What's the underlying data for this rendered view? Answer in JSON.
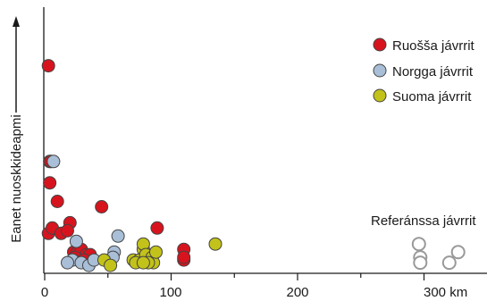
{
  "chart_data": {
    "type": "scatter",
    "title": "",
    "xlabel": "",
    "ylabel": "Eanet nuoskkideapmi",
    "xlim": [
      0,
      345
    ],
    "ylim": [
      0,
      100
    ],
    "x_ticks": [
      0,
      100,
      200,
      300
    ],
    "x_tick_labels": [
      "0",
      "100",
      "200",
      "300 km"
    ],
    "legend": {
      "position": "top-right"
    },
    "series": [
      {
        "name": "Ruošša jávrrit",
        "color": "#d7141e",
        "points": [
          [
            3,
            78
          ],
          [
            4,
            42
          ],
          [
            4,
            34
          ],
          [
            5,
            42
          ],
          [
            10,
            27
          ],
          [
            3,
            15
          ],
          [
            6,
            17
          ],
          [
            13,
            15
          ],
          [
            20,
            19
          ],
          [
            18,
            16
          ],
          [
            45,
            25
          ],
          [
            89,
            17
          ],
          [
            23,
            8
          ],
          [
            26,
            8
          ],
          [
            29,
            9
          ],
          [
            33,
            7
          ],
          [
            36,
            7
          ],
          [
            24,
            6
          ],
          [
            31,
            5
          ],
          [
            110,
            9
          ],
          [
            110,
            5
          ],
          [
            110,
            6
          ]
        ]
      },
      {
        "name": "Norgga jávrrit",
        "color": "#a9bfd7",
        "points": [
          [
            7,
            42
          ],
          [
            25,
            12
          ],
          [
            58,
            14
          ],
          [
            55,
            8
          ],
          [
            22,
            5
          ],
          [
            29,
            4
          ],
          [
            35,
            3
          ],
          [
            39,
            5
          ],
          [
            18,
            4
          ],
          [
            54,
            6
          ]
        ]
      },
      {
        "name": "Suoma jávrrit",
        "color": "#c2c21a",
        "points": [
          [
            47,
            5
          ],
          [
            52,
            3
          ],
          [
            70,
            5
          ],
          [
            75,
            5
          ],
          [
            78,
            9
          ],
          [
            78,
            11
          ],
          [
            80,
            7
          ],
          [
            85,
            6
          ],
          [
            86,
            4
          ],
          [
            88,
            8
          ],
          [
            82,
            4
          ],
          [
            135,
            11
          ],
          [
            72,
            4
          ],
          [
            78,
            4
          ]
        ]
      },
      {
        "name": "Referánssa jávrrit",
        "color": "#ffffff",
        "stroke": "#999999",
        "points": [
          [
            296,
            11
          ],
          [
            297,
            6
          ],
          [
            297,
            4
          ],
          [
            327,
            8
          ],
          [
            320,
            4
          ]
        ]
      }
    ]
  }
}
